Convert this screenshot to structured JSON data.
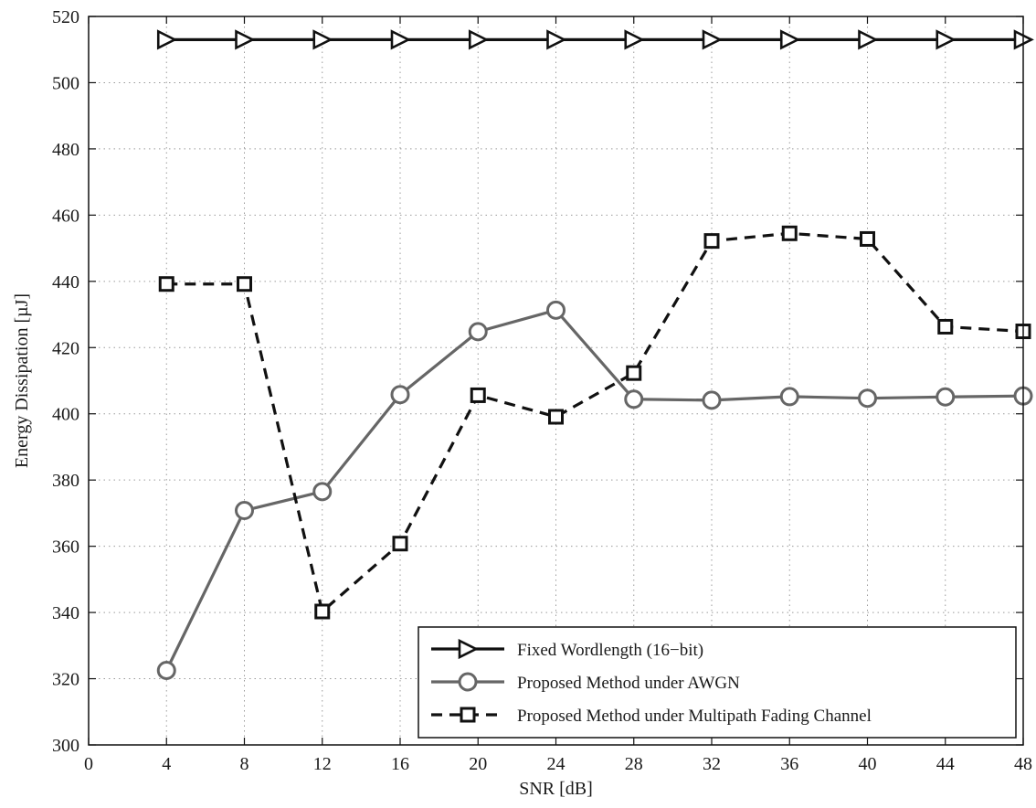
{
  "chart_data": {
    "type": "line",
    "xlabel": "SNR [dB]",
    "ylabel": "Energy Dissipation [µJ]",
    "xlim": [
      0,
      48
    ],
    "ylim": [
      300,
      520
    ],
    "xticks": [
      "0",
      "4",
      "8",
      "12",
      "16",
      "20",
      "24",
      "28",
      "32",
      "36",
      "40",
      "44",
      "48"
    ],
    "yticks": [
      "300",
      "320",
      "340",
      "360",
      "380",
      "400",
      "420",
      "440",
      "460",
      "480",
      "500",
      "520"
    ],
    "grid": true,
    "legend_position": "bottom-right",
    "x": [
      4,
      8,
      12,
      16,
      20,
      24,
      28,
      32,
      36,
      40,
      44,
      48
    ],
    "series": [
      {
        "name": "Fixed Wordlength (16−bit)",
        "values": [
          513,
          513,
          513,
          513,
          513,
          513,
          513,
          513,
          513,
          513,
          513,
          513
        ],
        "color": "#111111",
        "marker": "triangle-right",
        "dash": "solid"
      },
      {
        "name": "Proposed Method under AWGN",
        "values": [
          322.5,
          370.8,
          376.5,
          405.8,
          424.8,
          431.3,
          404.4,
          404.1,
          405.2,
          404.7,
          405.1,
          405.4
        ],
        "color": "#666666",
        "marker": "circle",
        "dash": "solid"
      },
      {
        "name": "Proposed Method under Multipath Fading Channel",
        "values": [
          439.2,
          439.2,
          340.3,
          360.8,
          405.6,
          399.1,
          412.3,
          452.2,
          454.5,
          452.8,
          426.3,
          424.9
        ],
        "color": "#111111",
        "marker": "square",
        "dash": "dashed"
      }
    ]
  }
}
